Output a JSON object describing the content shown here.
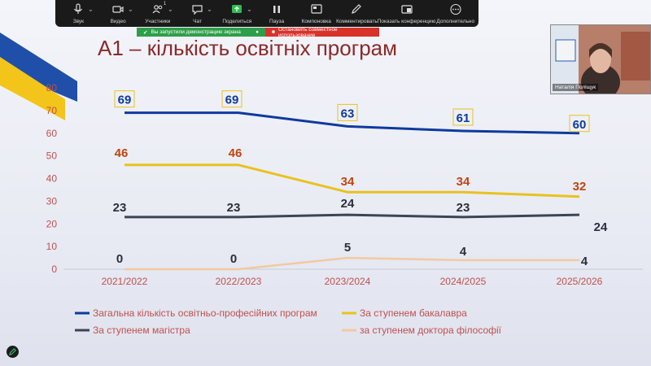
{
  "toolbar": {
    "items": [
      {
        "label": "Звук",
        "icon": "microphone-icon"
      },
      {
        "label": "Видео",
        "icon": "video-camera-icon"
      },
      {
        "label": "Участники",
        "icon": "participants-icon",
        "badge": "1"
      },
      {
        "label": "Чат",
        "icon": "chat-icon"
      },
      {
        "label": "Поделиться",
        "icon": "share-screen-icon"
      },
      {
        "label": "Пауза",
        "icon": "pause-icon"
      },
      {
        "label": "Компоновка",
        "icon": "layout-icon"
      },
      {
        "label": "Комментировать",
        "icon": "annotate-pencil-icon"
      },
      {
        "label": "Показать конференцию",
        "icon": "show-meeting-icon"
      },
      {
        "label": "Дополнительно",
        "icon": "more-icon"
      }
    ]
  },
  "banner": {
    "sharing_text": "Вы запустили демонстрацию экрана",
    "stop_text": "Остановить совместное использование"
  },
  "video": {
    "participant_name": "Наталія Поліщук"
  },
  "slide": {
    "title": "А1 – кількість освітніх програм"
  },
  "colors": {
    "series1": "#0e3a9e",
    "series2": "#e8c21e",
    "series3": "#3c4555",
    "series4": "#f2c9a0",
    "title": "#8b2a2a",
    "axis_text": "#c0504d"
  },
  "chart_data": {
    "type": "line",
    "title": "",
    "xlabel": "",
    "ylabel": "",
    "ylim": [
      0,
      80
    ],
    "yticks": [
      0,
      10,
      20,
      30,
      40,
      50,
      60,
      70,
      80
    ],
    "categories": [
      "2021/2022",
      "2022/2023",
      "2023/2024",
      "2024/2025",
      "2025/2026"
    ],
    "series": [
      {
        "name": "Загальна кількість освітньо-професійних програм",
        "values": [
          69,
          69,
          63,
          61,
          60
        ]
      },
      {
        "name": "За ступенем бакалавра",
        "values": [
          46,
          46,
          34,
          34,
          32
        ]
      },
      {
        "name": "За ступенем магістра",
        "values": [
          23,
          23,
          24,
          23,
          24
        ]
      },
      {
        "name": "за ступенем доктора філософії",
        "values": [
          0,
          0,
          5,
          4,
          4
        ]
      }
    ],
    "legend": "bottom",
    "grid": false
  }
}
